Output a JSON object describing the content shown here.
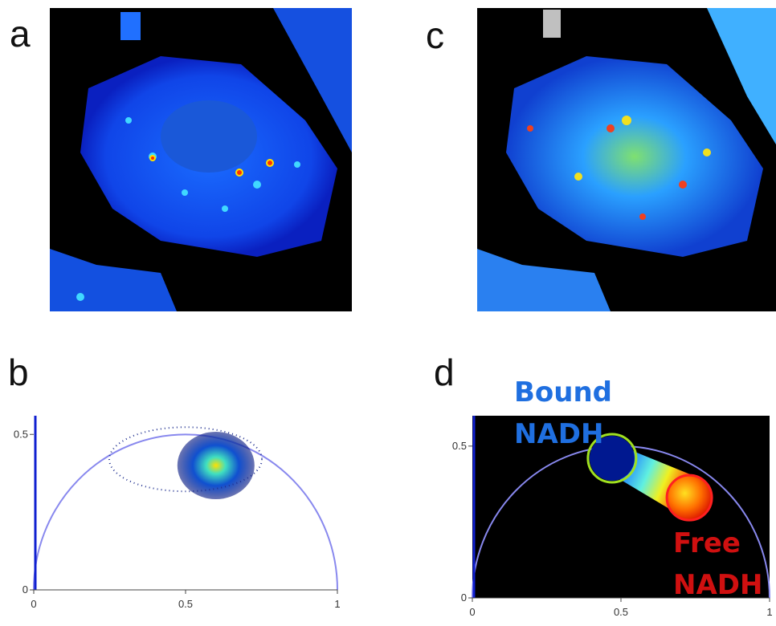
{
  "panels": [
    {
      "label": "a"
    },
    {
      "label": "b",
      "xlim": [
        0,
        1
      ],
      "ylim": [
        0,
        0.56
      ],
      "xticks": [
        0,
        0.5,
        1
      ],
      "yticks": [
        0,
        0.5
      ]
    },
    {
      "label": "c"
    },
    {
      "label": "d",
      "xlim": [
        0,
        1
      ],
      "ylim": [
        0,
        0.6
      ],
      "xticks": [
        0,
        0.5,
        1
      ],
      "yticks": [
        0,
        0.5
      ],
      "annotations": [
        {
          "lines": [
            "Bound",
            "NADH"
          ],
          "color": "#1f6fe0"
        },
        {
          "lines": [
            "Free",
            "NADH"
          ],
          "color": "#d01010"
        }
      ]
    }
  ]
}
